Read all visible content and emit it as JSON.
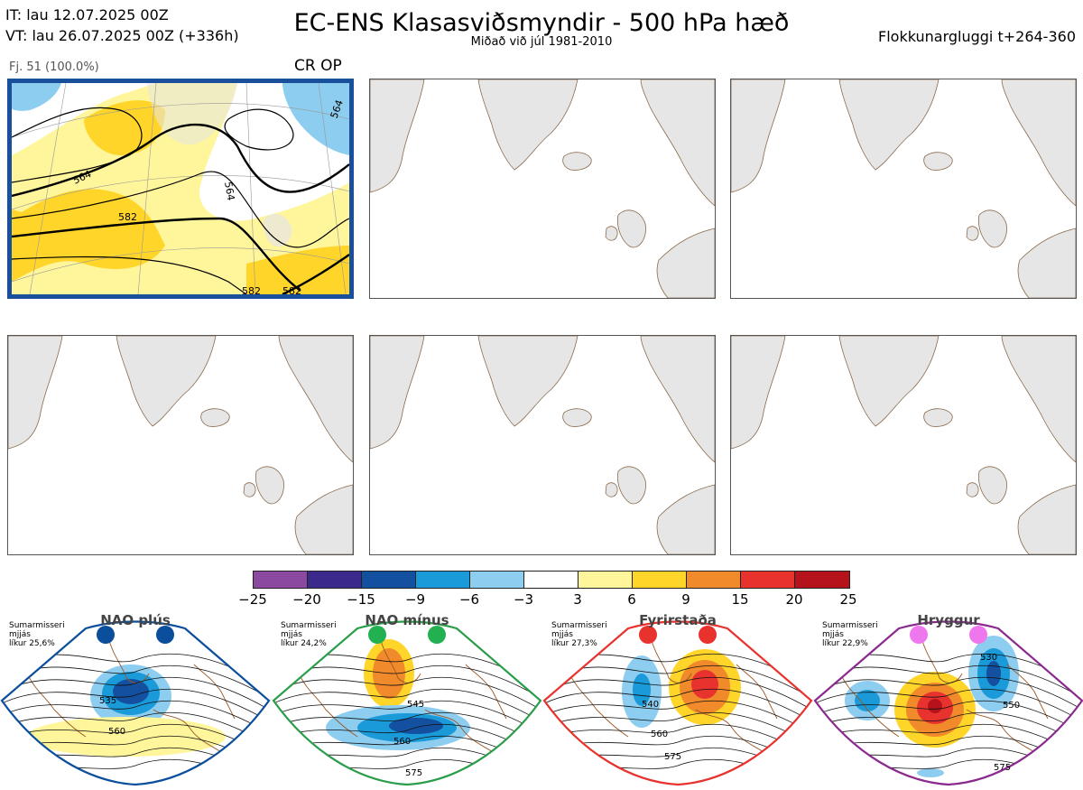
{
  "header": {
    "it_line": "IT: lau 12.07.2025 00Z",
    "vt_line": "VT: lau 26.07.2025 00Z  (+336h)",
    "title": "EC-ENS Klasasviðsmyndir - 500 hPa hæð",
    "subtitle": "Miðað við júl 1981-2010",
    "window": "Flokkunargluggi t+264-360"
  },
  "panel_main": {
    "member_label": "Fj. 51 (100.0%)",
    "regime_label": "CR OP",
    "contour_labels": [
      "564",
      "564",
      "582",
      "564",
      "582",
      "582"
    ]
  },
  "colorbar": {
    "ticks": [
      "−25",
      "−20",
      "−15",
      "−9",
      "−6",
      "−3",
      "3",
      "6",
      "9",
      "15",
      "20",
      "25"
    ],
    "colors": [
      "#8b4aa0",
      "#3b2a8c",
      "#1450a0",
      "#1a9ad8",
      "#8dcdf0",
      "#ffffff",
      "#fff59a",
      "#ffd52a",
      "#f08a2a",
      "#e8322e",
      "#b5121b"
    ]
  },
  "regimes": [
    {
      "name": "NAO plús",
      "season": "Sumarmisseri",
      "mean": "mjjás",
      "prob": "líkur 25,6%",
      "color": "#0b4f9c",
      "dot_color": "#0b4f9c",
      "labels": [
        "535",
        "560"
      ]
    },
    {
      "name": "NAO mínus",
      "season": "Sumarmisseri",
      "mean": "mjjás",
      "prob": "líkur 24,2%",
      "color": "#2a9d4a",
      "dot_color": "#22b050",
      "labels": [
        "545",
        "560",
        "575"
      ]
    },
    {
      "name": "Fyrirstaða",
      "season": "Sumarmisseri",
      "mean": "mjjás",
      "prob": "líkur 27,3%",
      "color": "#e8322e",
      "dot_color": "#e8322e",
      "labels": [
        "540",
        "560",
        "575"
      ]
    },
    {
      "name": "Hryggur",
      "season": "Sumarmisseri",
      "mean": "mjjás",
      "prob": "líkur 22,9%",
      "color": "#8a2a8f",
      "dot_color": "#ee77ee",
      "labels": [
        "530",
        "550",
        "575"
      ]
    }
  ]
}
